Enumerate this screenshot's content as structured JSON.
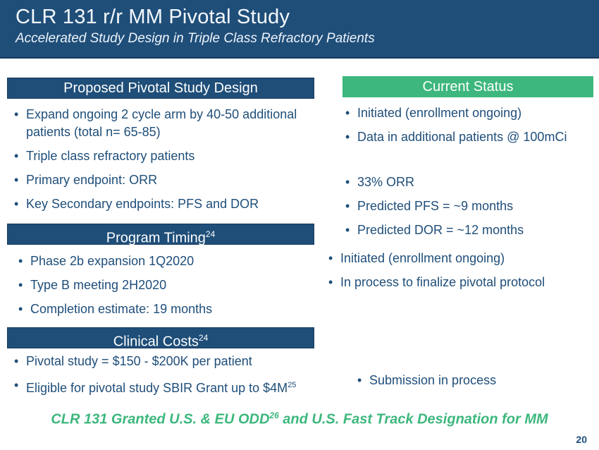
{
  "slide": {
    "title": "CLR 131 r/r MM Pivotal Study",
    "subtitle": "Accelerated Study Design in Triple Class Refractory Patients",
    "page_number": "20"
  },
  "left": {
    "design": {
      "header": "Proposed Pivotal Study Design",
      "bullets": [
        "Expand ongoing 2 cycle arm by 40-50 additional patients (total n= 65-85)",
        "Triple class refractory patients",
        "Primary endpoint: ORR",
        "Key Secondary endpoints: PFS and DOR"
      ]
    },
    "timing": {
      "header": "Program Timing",
      "header_sup": "24",
      "bullets": [
        "Phase 2b expansion 1Q2020",
        "Type B meeting 2H2020",
        "Completion estimate: 19 months"
      ]
    },
    "costs": {
      "header": "Clinical Costs",
      "header_sup": "24",
      "bullets": [
        {
          "text": "Pivotal study = $150 - $200K per patient"
        },
        {
          "text": "Eligible for pivotal study SBIR Grant up to $4M",
          "sup": "25"
        }
      ]
    }
  },
  "right": {
    "header": "Current Status",
    "group1": [
      "Initiated (enrollment ongoing)",
      "Data in additional patients @ 100mCi"
    ],
    "group2": [
      "33% ORR",
      "Predicted PFS = ~9 months",
      "Predicted DOR = ~12 months"
    ],
    "group3": [
      "Initiated (enrollment ongoing)",
      "In process to finalize pivotal protocol"
    ],
    "group4": [
      "Submission in process"
    ]
  },
  "footer": {
    "pre": "CLR 131 Granted U.S. & EU ODD",
    "sup": "26",
    "post": " and U.S. Fast Track Designation for MM"
  },
  "colors": {
    "dark_blue": "#1F4E79",
    "green": "#3DB77D"
  }
}
